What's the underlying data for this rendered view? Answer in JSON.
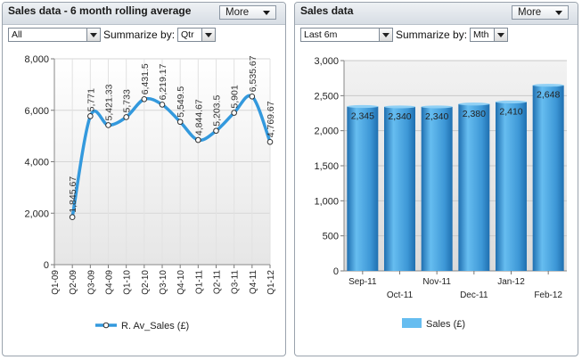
{
  "panels": {
    "left": {
      "title": "Sales data - 6 month rolling average",
      "more_label": "More",
      "filter_value": "All",
      "summarize_label": "Summarize by:",
      "summarize_value": "Qtr"
    },
    "right": {
      "title": "Sales data",
      "more_label": "More",
      "filter_value": "Last 6m",
      "summarize_label": "Summarize by:",
      "summarize_value": "Mth"
    }
  },
  "colors": {
    "line": "#3399dd",
    "bar_light": "#66bdf0",
    "bar_dark": "#1f6fb0"
  },
  "chart_data": [
    {
      "type": "line",
      "categories": [
        "Q1-09",
        "Q2-09",
        "Q3-09",
        "Q4-09",
        "Q1-10",
        "Q2-10",
        "Q3-10",
        "Q4-10",
        "Q1-11",
        "Q2-11",
        "Q3-11",
        "Q4-11",
        "Q1-12"
      ],
      "series": [
        {
          "name": "R. Av_Sales (£)",
          "values": [
            null,
            1845.67,
            5771,
            5421.33,
            5733,
            6431.5,
            6219.17,
            5549.5,
            4844.67,
            5203.5,
            5901,
            6535.67,
            4769.67
          ],
          "labels": [
            "",
            "1,845.67",
            "5,771",
            "5,421.33",
            "5,733",
            "6,431.5",
            "6,219.17",
            "5,549.5",
            "4,844.67",
            "5,203.5",
            "5,901",
            "6,535.67",
            "4,769.67"
          ]
        }
      ],
      "yticks": [
        "0",
        "2,000",
        "4,000",
        "6,000",
        "8,000"
      ],
      "ylim": [
        0,
        8000
      ],
      "grid": true,
      "legend": "bottom"
    },
    {
      "type": "bar",
      "categories": [
        "Sep-11",
        "Oct-11",
        "Nov-11",
        "Dec-11",
        "Jan-12",
        "Feb-12"
      ],
      "series": [
        {
          "name": "Sales (£)",
          "values": [
            2345,
            2340,
            2340,
            2380,
            2410,
            2648
          ],
          "labels": [
            "2,345",
            "2,340",
            "2,340",
            "2,380",
            "2,410",
            "2,648"
          ]
        }
      ],
      "yticks": [
        "0",
        "500",
        "1,000",
        "1,500",
        "2,000",
        "2,500",
        "3,000"
      ],
      "ylim": [
        0,
        3000
      ],
      "grid": true,
      "legend": "bottom"
    }
  ]
}
